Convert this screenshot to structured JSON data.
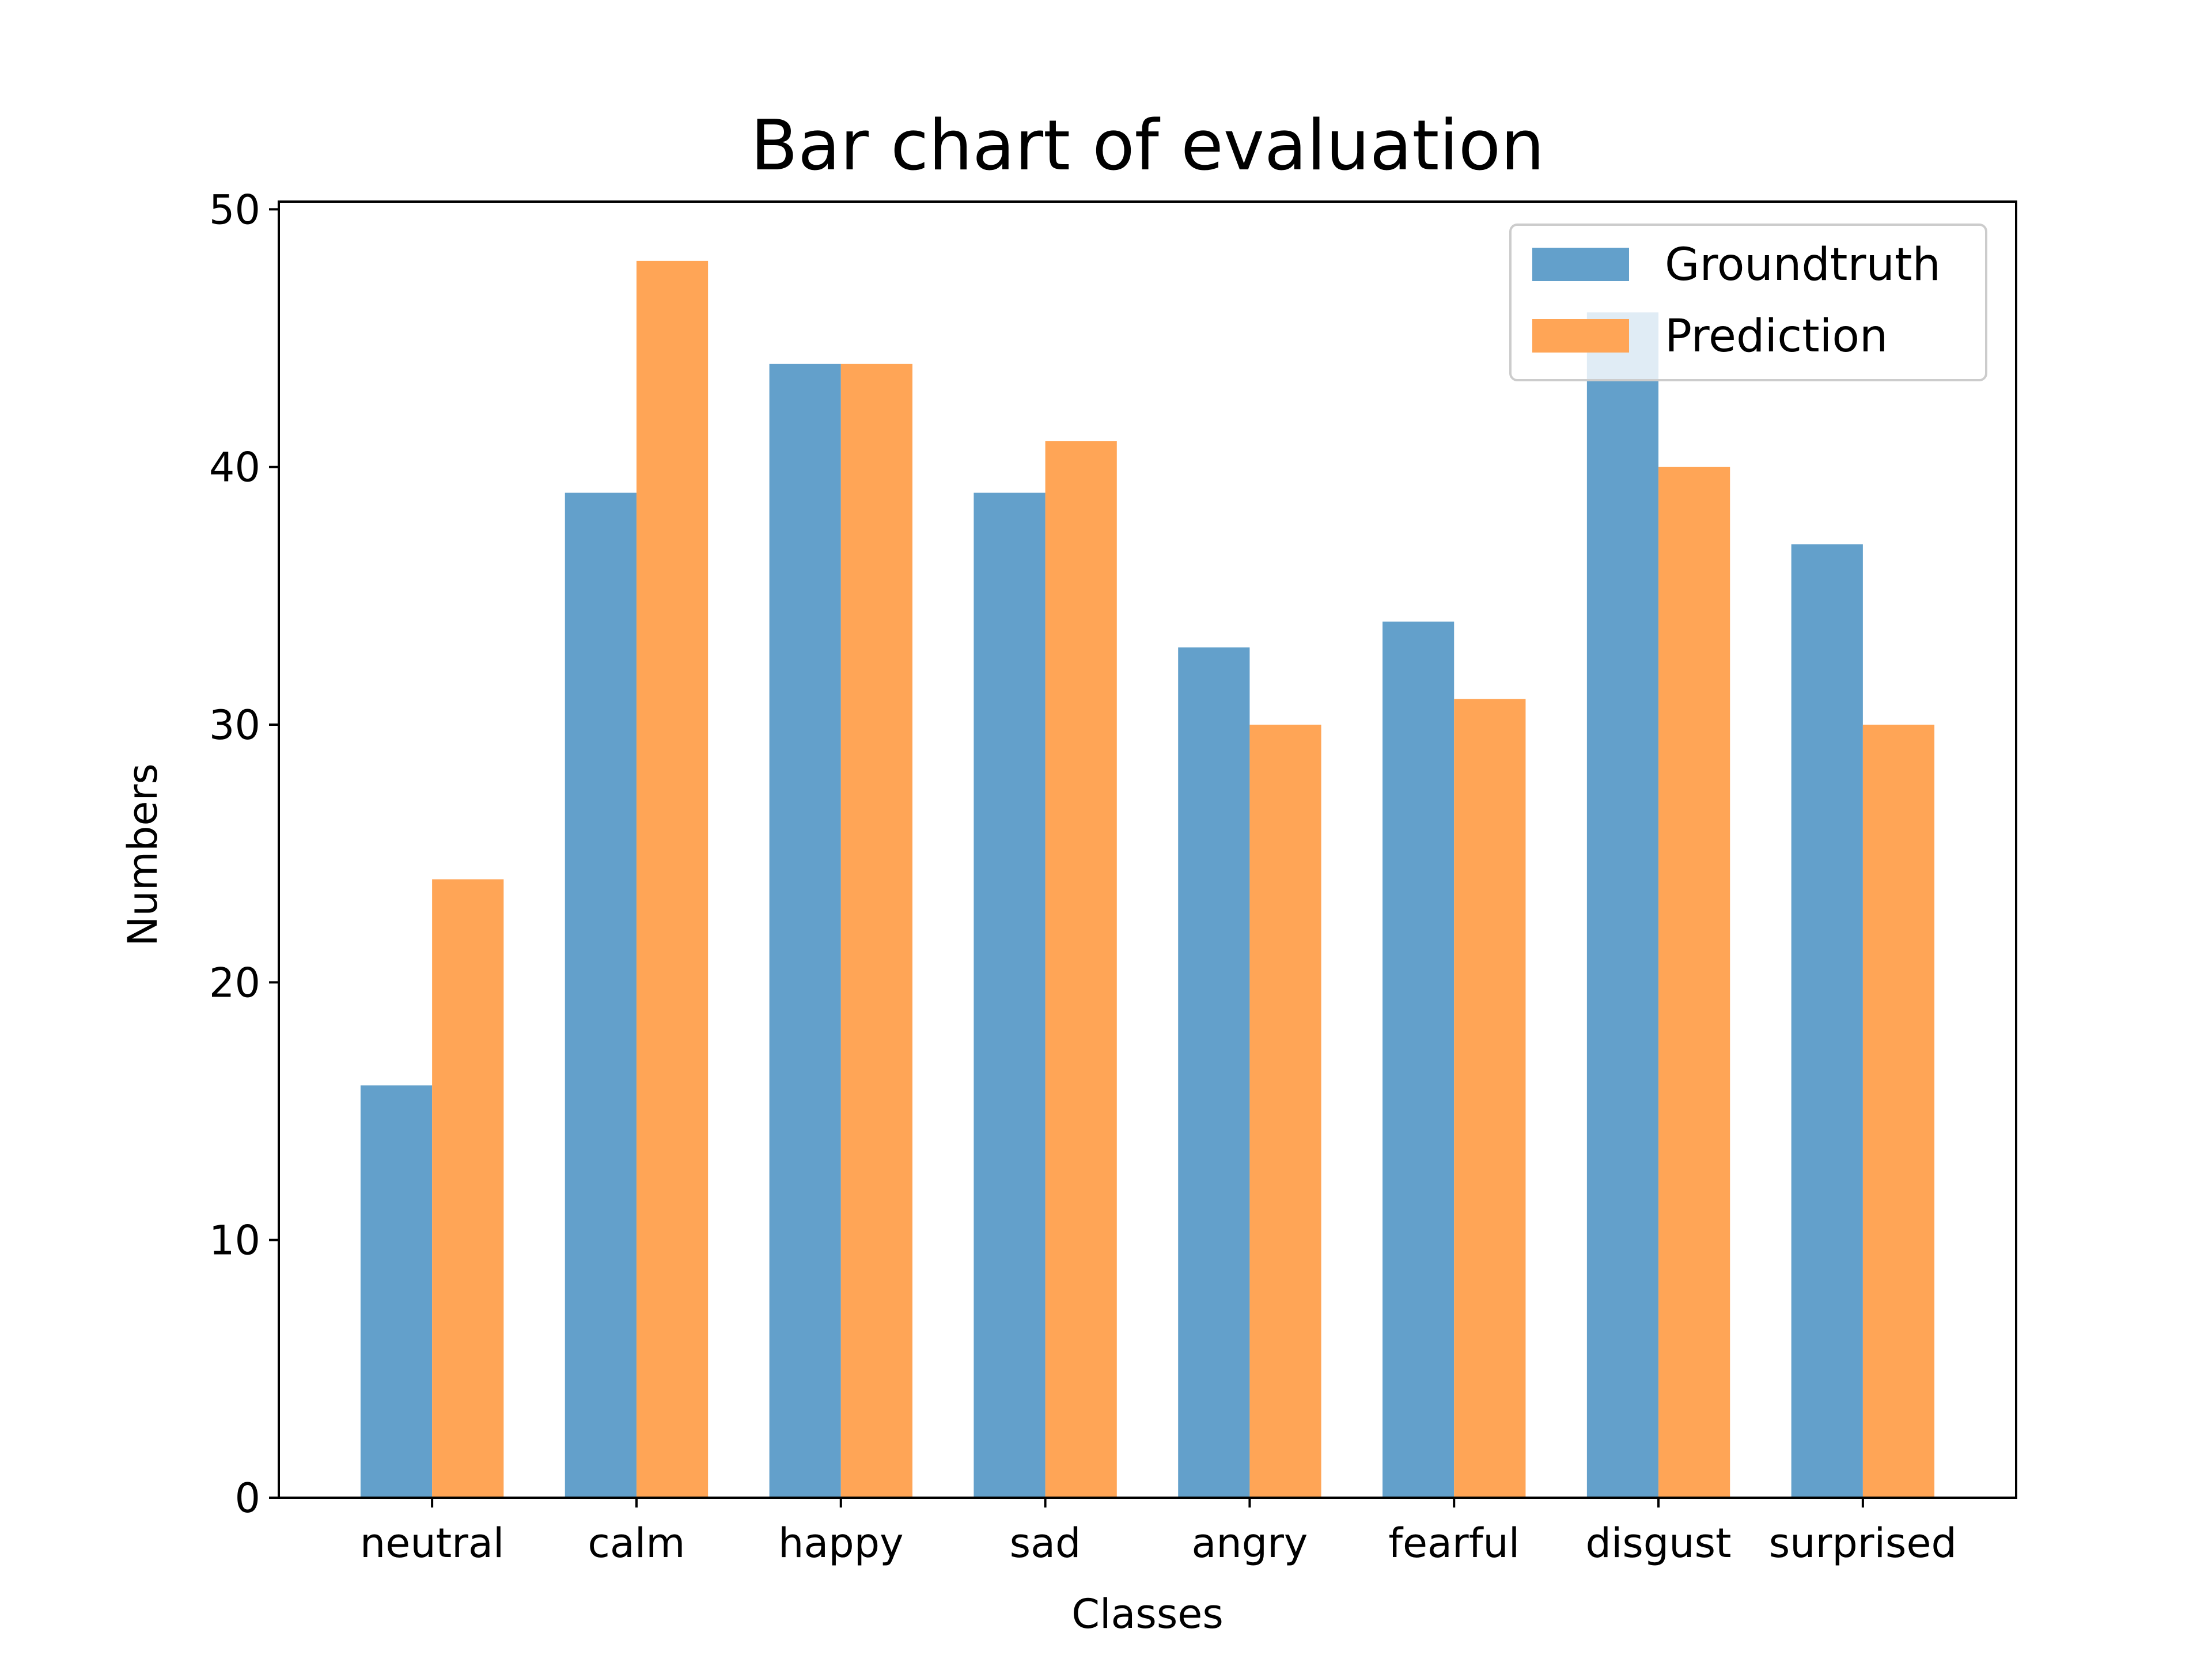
{
  "chart_data": {
    "type": "bar",
    "title": "Bar chart of evaluation",
    "xlabel": "Classes",
    "ylabel": "Numbers",
    "categories": [
      "neutral",
      "calm",
      "happy",
      "sad",
      "angry",
      "fearful",
      "disgust",
      "surprised"
    ],
    "series": [
      {
        "name": "Groundtruth",
        "color": "#63a0cb",
        "values": [
          16,
          39,
          44,
          39,
          33,
          34,
          46,
          37
        ]
      },
      {
        "name": "Prediction",
        "color": "#ffa556",
        "values": [
          24,
          48,
          44,
          41,
          30,
          31,
          40,
          30
        ]
      }
    ],
    "ylim": [
      0,
      50.3
    ],
    "yticks": [
      0,
      10,
      20,
      30,
      40,
      50
    ],
    "grid": false,
    "legend_position": "top-right"
  }
}
